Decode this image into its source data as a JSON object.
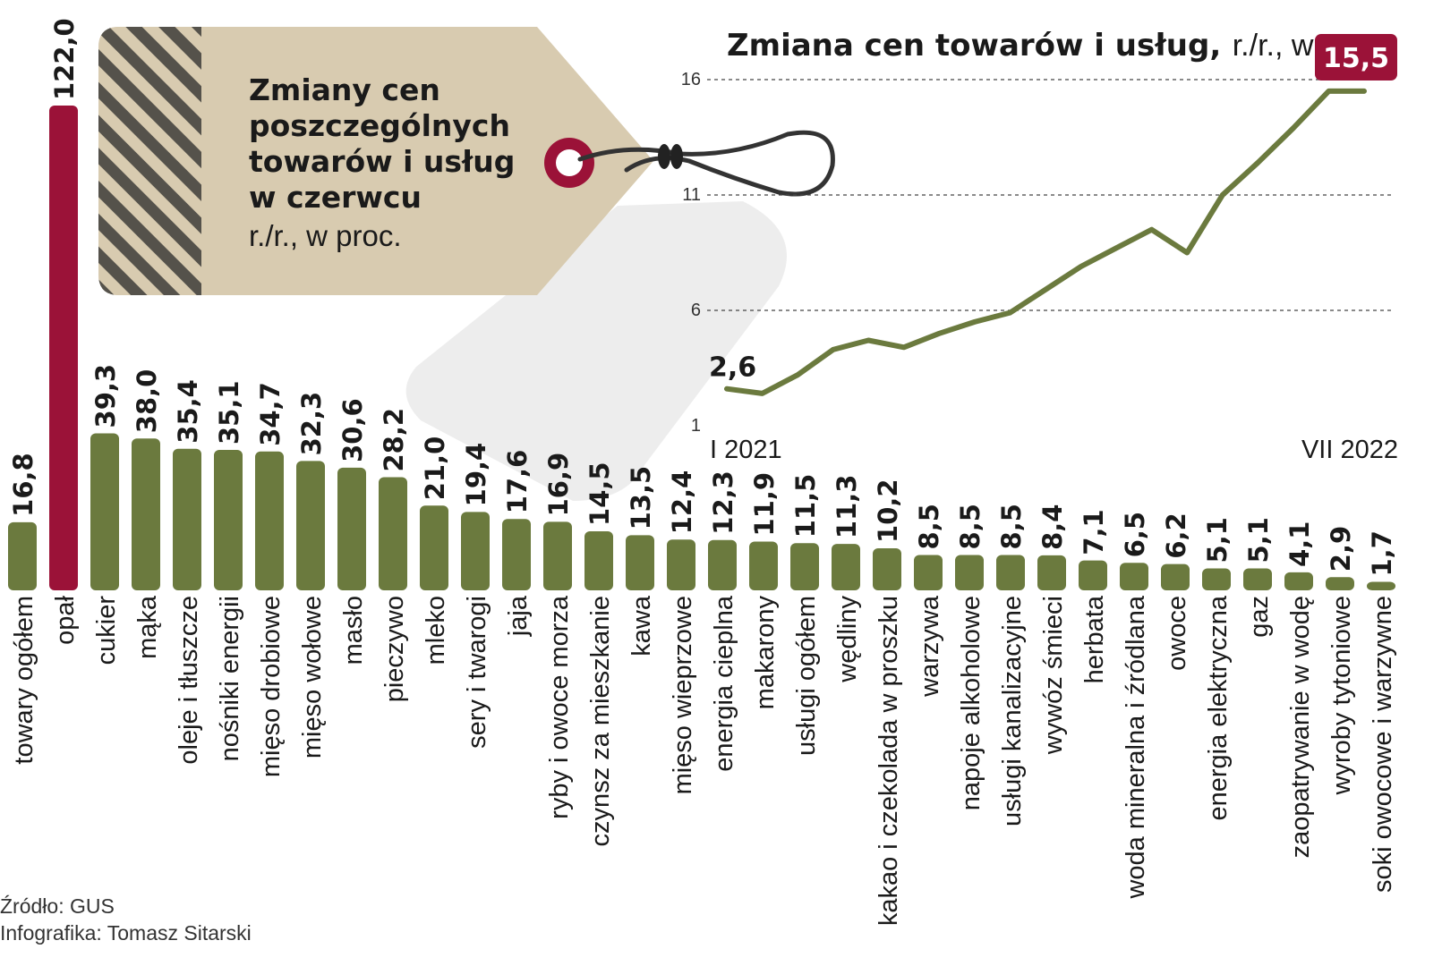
{
  "colors": {
    "bar": "#6b7a3e",
    "highlight": "#9b1238",
    "line": "#6b7a3e",
    "tag": "#d8cbb0",
    "stripe": "#55524b",
    "grid": "#444444"
  },
  "tag": {
    "title_lines": [
      "Zmiany cen",
      "poszczególnych",
      "towarów i usług",
      "w czerwcu"
    ],
    "subtitle": "r./r., w proc."
  },
  "credits": {
    "source": "Źródło: GUS",
    "author": "Infografika: Tomasz Sitarski"
  },
  "chart_data": [
    {
      "type": "bar",
      "title": "Zmiany cen poszczególnych towarów i usług w czerwcu",
      "unit": "r./r., w proc.",
      "categories": [
        "towary ogółem",
        "opał",
        "cukier",
        "mąka",
        "oleje i tłuszcze",
        "nośniki energii",
        "mięso drobiowe",
        "mięso wołowe",
        "masło",
        "pieczywo",
        "mleko",
        "sery i twarogi",
        "jaja",
        "ryby i owoce morza",
        "czynsz za mieszkanie",
        "kawa",
        "mięso wieprzowe",
        "energia cieplna",
        "makarony",
        "usługi ogółem",
        "wędliny",
        "kakao i czekolada w proszku",
        "warzywa",
        "napoje alkoholowe",
        "usługi kanalizacyjne",
        "wywóz śmieci",
        "herbata",
        "woda mineralna i źródlana",
        "owoce",
        "energia elektryczna",
        "gaz",
        "zaopatrywanie w wodę",
        "wyroby tytoniowe",
        "soki owocowe i warzywne"
      ],
      "values": [
        16.8,
        122.0,
        39.3,
        38.0,
        35.4,
        35.1,
        34.7,
        32.3,
        30.6,
        28.2,
        21.0,
        19.4,
        17.6,
        16.9,
        14.5,
        13.5,
        12.4,
        12.3,
        11.9,
        11.5,
        11.3,
        10.2,
        8.5,
        8.5,
        8.5,
        8.4,
        7.1,
        6.5,
        6.2,
        5.1,
        5.1,
        4.1,
        2.9,
        1.7
      ],
      "labels": [
        "16,8",
        "122,0",
        "39,3",
        "38,0",
        "35,4",
        "35,1",
        "34,7",
        "32,3",
        "30,6",
        "28,2",
        "21,0",
        "19,4",
        "17,6",
        "16,9",
        "14,5",
        "13,5",
        "12,4",
        "12,3",
        "11,9",
        "11,5",
        "11,3",
        "10,2",
        "8,5",
        "8,5",
        "8,5",
        "8,4",
        "7,1",
        "6,5",
        "6,2",
        "5,1",
        "5,1",
        "4,1",
        "2,9",
        "1,7"
      ],
      "highlight_index": 1
    },
    {
      "type": "line",
      "title": "Zmiana cen towarów i usług,",
      "title_unit": "r./r., w proc.",
      "x_start_label": "I 2021",
      "x_end_label": "VII 2022",
      "y_ticks": [
        "1",
        "6",
        "11",
        "16"
      ],
      "ylim": [
        1,
        16
      ],
      "grid": true,
      "series": [
        {
          "values": [
            2.6,
            2.4,
            3.2,
            4.3,
            4.7,
            4.4,
            5.0,
            5.5,
            5.9,
            6.9,
            7.9,
            8.7,
            9.5,
            8.5,
            11.0,
            12.4,
            13.9,
            15.5,
            15.5
          ]
        }
      ],
      "start_label": "2,6",
      "end_label": "15,5"
    }
  ]
}
